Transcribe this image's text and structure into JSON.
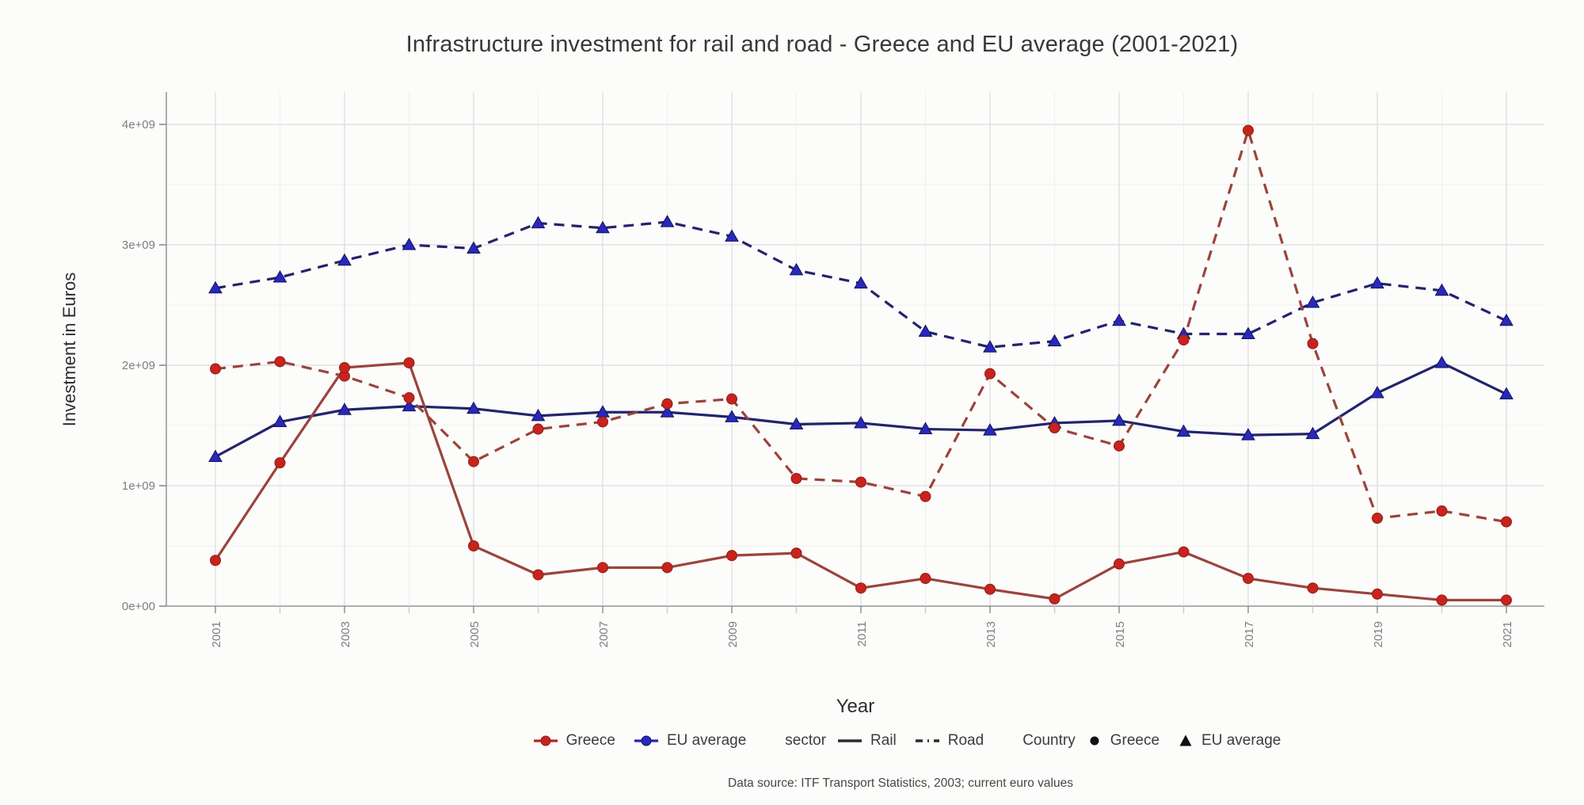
{
  "caption": "Data source: ITF Transport Statistics, 2003; current euro values",
  "colors": {
    "background": "#fcfcfb",
    "grid_major": "#e1e1e1",
    "grid_minor": "#efefef",
    "axis_line": "#9a9a9a",
    "tick_mark": "#8a8a8a",
    "tick_text": "#7d7d7d",
    "title_text": "#383838",
    "greece_line": "#9a443c",
    "greece_marker": "#c8231c",
    "eu_line": "#23246b",
    "eu_marker": "#2828bd"
  },
  "legend": {
    "position": "bottom",
    "color_items": [
      {
        "label": "Greece",
        "line": "#b02a22",
        "marker": "#c8231c",
        "marker_shape": "circle"
      },
      {
        "label": "EU average",
        "line": "#2626b4",
        "marker": "#2828bd",
        "marker_shape": "circle"
      }
    ],
    "sector_title": "sector",
    "sector_items": [
      {
        "label": "Rail",
        "linetype": "solid"
      },
      {
        "label": "Road",
        "linetype": "dashed"
      }
    ],
    "country_title": "Country",
    "country_items": [
      {
        "label": "Greece",
        "shape": "circle"
      },
      {
        "label": "EU average",
        "shape": "triangle"
      }
    ]
  },
  "chart_data": {
    "type": "line",
    "title": "Infrastructure investment for rail and road - Greece and EU average (2001-2021)",
    "xlabel": "Year",
    "ylabel": "Investment in Euros",
    "x": [
      2001,
      2002,
      2003,
      2004,
      2005,
      2006,
      2007,
      2008,
      2009,
      2010,
      2011,
      2012,
      2013,
      2014,
      2015,
      2016,
      2017,
      2018,
      2019,
      2020,
      2021
    ],
    "x_tick_labels": [
      "2001",
      "2003",
      "2005",
      "2007",
      "2009",
      "2011",
      "2013",
      "2015",
      "2017",
      "2019",
      "2021"
    ],
    "x_tick_years": [
      2001,
      2003,
      2005,
      2007,
      2009,
      2011,
      2013,
      2015,
      2017,
      2019,
      2021
    ],
    "ylim": [
      0,
      4000000000.0
    ],
    "y_tick_labels": [
      "0e+00",
      "1e+09",
      "2e+09",
      "3e+09",
      "4e+09"
    ],
    "y_tick_values": [
      0,
      1000000000.0,
      2000000000.0,
      3000000000.0,
      4000000000.0
    ],
    "y_minor_step": 500000000.0,
    "grid": true,
    "legend_position": "bottom",
    "series": [
      {
        "name": "EU average Road",
        "country": "EU average",
        "sector": "Road",
        "linetype": "dashed",
        "marker": "triangle",
        "color_line": "#23246b",
        "color_marker": "#2828bd",
        "values": [
          2640000000.0,
          2730000000.0,
          2870000000.0,
          3000000000.0,
          2970000000.0,
          3180000000.0,
          3140000000.0,
          3190000000.0,
          3070000000.0,
          2790000000.0,
          2680000000.0,
          2280000000.0,
          2150000000.0,
          2200000000.0,
          2370000000.0,
          2260000000.0,
          2260000000.0,
          2520000000.0,
          2680000000.0,
          2620000000.0,
          2370000000.0
        ]
      },
      {
        "name": "EU average Rail",
        "country": "EU average",
        "sector": "Rail",
        "linetype": "solid",
        "marker": "triangle",
        "color_line": "#23246b",
        "color_marker": "#2828bd",
        "values": [
          1240000000.0,
          1530000000.0,
          1630000000.0,
          1660000000.0,
          1640000000.0,
          1580000000.0,
          1610000000.0,
          1610000000.0,
          1570000000.0,
          1510000000.0,
          1520000000.0,
          1470000000.0,
          1460000000.0,
          1520000000.0,
          1540000000.0,
          1450000000.0,
          1420000000.0,
          1430000000.0,
          1770000000.0,
          2020000000.0,
          1760000000.0
        ]
      },
      {
        "name": "Greece Road",
        "country": "Greece",
        "sector": "Road",
        "linetype": "dashed",
        "marker": "circle",
        "color_line": "#9a443c",
        "color_marker": "#c8231c",
        "values": [
          1970000000.0,
          2030000000.0,
          1910000000.0,
          1730000000.0,
          1200000000.0,
          1470000000.0,
          1530000000.0,
          1680000000.0,
          1720000000.0,
          1060000000.0,
          1030000000.0,
          910000000.0,
          1930000000.0,
          1480000000.0,
          1330000000.0,
          2210000000.0,
          3950000000.0,
          2180000000.0,
          730000000.0,
          790000000.0,
          700000000.0
        ]
      },
      {
        "name": "Greece Rail",
        "country": "Greece",
        "sector": "Rail",
        "linetype": "solid",
        "marker": "circle",
        "color_line": "#9a443c",
        "color_marker": "#c8231c",
        "values": [
          380000000.0,
          1190000000.0,
          1980000000.0,
          2020000000.0,
          500000000.0,
          260000000.0,
          320000000.0,
          320000000.0,
          420000000.0,
          440000000.0,
          150000000.0,
          230000000.0,
          140000000.0,
          60000000.0,
          350000000.0,
          450000000.0,
          230000000.0,
          150000000.0,
          100000000.0,
          50000000.0,
          50000000.0
        ]
      }
    ]
  }
}
